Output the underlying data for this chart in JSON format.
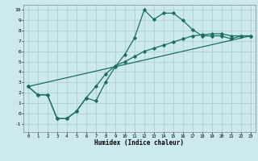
{
  "title": "",
  "xlabel": "Humidex (Indice chaleur)",
  "xlim": [
    -0.5,
    23.5
  ],
  "ylim": [
    -1.8,
    10.5
  ],
  "xticks": [
    0,
    1,
    2,
    3,
    4,
    5,
    6,
    7,
    8,
    9,
    10,
    11,
    12,
    13,
    14,
    15,
    16,
    17,
    18,
    19,
    20,
    21,
    22,
    23
  ],
  "yticks": [
    -1,
    0,
    1,
    2,
    3,
    4,
    5,
    6,
    7,
    8,
    9,
    10
  ],
  "bg_color": "#cce9ee",
  "grid_color": "#aacccc",
  "line_color": "#1a6e60",
  "line1_x": [
    0,
    1,
    2,
    3,
    4,
    5,
    6,
    7,
    8,
    9,
    10,
    11,
    12,
    13,
    14,
    15,
    16,
    17,
    18,
    19,
    20,
    21,
    22,
    23
  ],
  "line1_y": [
    2.6,
    1.8,
    1.8,
    -0.5,
    -0.5,
    0.2,
    1.5,
    1.2,
    3.0,
    4.5,
    5.7,
    7.3,
    10.0,
    9.1,
    9.7,
    9.7,
    9.0,
    8.1,
    7.5,
    7.5,
    7.5,
    7.2,
    7.5,
    7.5
  ],
  "line2_x": [
    0,
    1,
    2,
    3,
    4,
    5,
    6,
    7,
    8,
    9,
    10,
    11,
    12,
    13,
    14,
    15,
    16,
    17,
    18,
    19,
    20,
    21,
    22,
    23
  ],
  "line2_y": [
    2.6,
    1.8,
    1.8,
    -0.5,
    -0.5,
    0.2,
    1.5,
    2.6,
    3.8,
    4.6,
    5.0,
    5.5,
    6.0,
    6.3,
    6.6,
    6.9,
    7.2,
    7.5,
    7.6,
    7.7,
    7.7,
    7.5,
    7.5,
    7.5
  ],
  "line3_x": [
    0,
    23
  ],
  "line3_y": [
    2.6,
    7.5
  ],
  "figsize": [
    3.2,
    2.0
  ],
  "dpi": 100
}
